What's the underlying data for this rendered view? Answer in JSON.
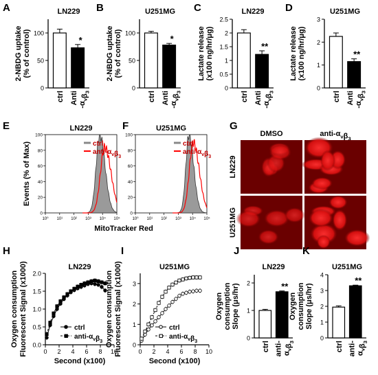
{
  "chart_data": [
    {
      "panel": "A",
      "type": "bar",
      "title": "LN229",
      "ylabel": [
        "2-NBDG uptake",
        "(% of control)"
      ],
      "ylim": [
        0,
        125
      ],
      "yticks": [
        "0",
        "50",
        "100"
      ],
      "categories": [
        "ctrl",
        "Anti\n-αvβ3"
      ],
      "values": [
        100,
        73
      ],
      "errors": [
        7,
        6
      ],
      "significance": [
        null,
        "*"
      ]
    },
    {
      "panel": "B",
      "type": "bar",
      "title": "U251MG",
      "ylabel": [
        "2-NBDG uptake",
        "(% of control)"
      ],
      "ylim": [
        0,
        125
      ],
      "yticks": [
        "0",
        "50",
        "100"
      ],
      "categories": [
        "ctrl",
        "Anti\n-αvβ3"
      ],
      "values": [
        100,
        78
      ],
      "errors": [
        3,
        3
      ],
      "significance": [
        null,
        "*"
      ]
    },
    {
      "panel": "C",
      "type": "bar",
      "title": "LN229",
      "ylabel": [
        "Lactate release",
        "(x100 ng/hr/μg)"
      ],
      "ylim": [
        0,
        2.5
      ],
      "yticks": [
        "0",
        "0.5",
        "1",
        "1.5",
        "2",
        "2.5"
      ],
      "categories": [
        "ctrl",
        "Anti\n-αvβ3"
      ],
      "values": [
        2.0,
        1.22
      ],
      "errors": [
        0.12,
        0.13
      ],
      "significance": [
        null,
        "**"
      ]
    },
    {
      "panel": "D",
      "type": "bar",
      "title": "U251MG",
      "ylabel": [
        "Lactate release",
        "(x100 ng/hr/μg)"
      ],
      "ylim": [
        0,
        3
      ],
      "yticks": [
        "0",
        "1",
        "2",
        "3"
      ],
      "categories": [
        "ctrl",
        "Anti\n-αvβ3"
      ],
      "values": [
        2.25,
        1.15
      ],
      "errors": [
        0.15,
        0.12
      ],
      "significance": [
        null,
        "**"
      ]
    },
    {
      "panel": "E",
      "type": "area",
      "title": "LN229",
      "ylabel": "Events (% of Max)",
      "ylim": [
        0,
        100
      ],
      "yticks": [
        "0",
        "20",
        "40",
        "60",
        "80",
        "100"
      ],
      "xticks": [
        "10⁰",
        "10¹",
        "10²",
        "10³",
        "10⁴",
        "10⁵"
      ],
      "legend": [
        "ctrl",
        "anti-αvβ3"
      ],
      "series": [
        {
          "name": "ctrl",
          "peak_log10": 3.8,
          "width": 0.25,
          "peak": 100
        },
        {
          "name": "anti-αvβ3",
          "peak_log10": 4.15,
          "width": 0.3,
          "peak": 84
        }
      ]
    },
    {
      "panel": "F",
      "type": "area",
      "title": "U251MG",
      "ylabel": "",
      "ylim": [
        0,
        100
      ],
      "yticks": [
        "0",
        "20",
        "40",
        "60",
        "80",
        "100"
      ],
      "xticks": [
        "10⁰",
        "10¹",
        "10²",
        "10³",
        "10⁴",
        "10⁵"
      ],
      "legend": [
        "ctrl",
        "anti-αvβ3"
      ],
      "series": [
        {
          "name": "ctrl",
          "peak_log10": 3.75,
          "width": 0.22,
          "peak": 100
        },
        {
          "name": "anti-αvβ3",
          "peak_log10": 4.05,
          "width": 0.28,
          "peak": 90
        }
      ]
    },
    {
      "panel": "H",
      "type": "line",
      "title": "LN229",
      "ylabel": [
        "Oxygen consumption",
        "Fluorescent Signal (x1000)"
      ],
      "xlabel": "Second (x100)",
      "xlim": [
        0,
        10
      ],
      "ylim": [
        0,
        2
      ],
      "xticks": [
        "0",
        "2",
        "4",
        "6",
        "8",
        "10"
      ],
      "yticks": [
        "0.0",
        "0.5",
        "1.0",
        "1.5",
        "2.0"
      ],
      "legend": [
        "ctrl",
        "anti-αvβ3"
      ],
      "x": [
        0.2,
        0.7,
        1.2,
        1.7,
        2.2,
        2.7,
        3.2,
        3.7,
        4.2,
        4.7,
        5.2,
        5.7,
        6.2,
        6.7,
        7.2,
        7.7,
        8.2,
        8.7
      ],
      "series": [
        {
          "name": "ctrl",
          "values": [
            0.2,
            0.55,
            0.8,
            1.0,
            1.15,
            1.28,
            1.38,
            1.47,
            1.53,
            1.58,
            1.62,
            1.66,
            1.7,
            1.72,
            1.7,
            1.68,
            1.62,
            1.52
          ]
        },
        {
          "name": "anti-αvβ3",
          "values": [
            0.3,
            0.62,
            0.88,
            1.08,
            1.22,
            1.33,
            1.42,
            1.5,
            1.57,
            1.63,
            1.68,
            1.72,
            1.75,
            1.78,
            1.8,
            1.78,
            1.75,
            1.72
          ]
        }
      ]
    },
    {
      "panel": "I",
      "type": "line",
      "title": "U251MG",
      "ylabel": [
        "Oxygen consumption",
        "Fluorescent Signal (x1000)"
      ],
      "xlabel": "Second (x100)",
      "xlim": [
        0,
        10
      ],
      "ylim": [
        0,
        3.5
      ],
      "xticks": [
        "0",
        "2",
        "4",
        "6",
        "8",
        "10"
      ],
      "yticks": [
        "0",
        "1",
        "2",
        "3"
      ],
      "legend": [
        "ctrl",
        "anti-αvβ3"
      ],
      "x": [
        0.2,
        0.7,
        1.2,
        1.7,
        2.2,
        2.7,
        3.2,
        3.7,
        4.2,
        4.7,
        5.2,
        5.7,
        6.2,
        6.7,
        7.2,
        7.7,
        8.2,
        8.7
      ],
      "series": [
        {
          "name": "ctrl",
          "values": [
            0.2,
            0.5,
            0.75,
            0.95,
            1.15,
            1.35,
            1.55,
            1.75,
            1.92,
            2.1,
            2.25,
            2.4,
            2.5,
            2.55,
            2.6,
            2.62,
            2.65,
            2.65
          ]
        },
        {
          "name": "anti-αvβ3",
          "values": [
            0.3,
            0.65,
            1.0,
            1.35,
            1.7,
            2.05,
            2.35,
            2.6,
            2.8,
            2.95,
            3.05,
            3.15,
            3.2,
            3.25,
            3.28,
            3.3,
            3.3,
            3.3
          ]
        }
      ]
    },
    {
      "panel": "J",
      "type": "bar",
      "title": "LN229",
      "ylabel": [
        "Oxygen",
        "consumption",
        "Slope (μs/hr)"
      ],
      "ylim": [
        0,
        2.3
      ],
      "yticks": [
        "0",
        "1",
        "2"
      ],
      "categories": [
        "ctrl",
        "anti-\nαvβ3"
      ],
      "values": [
        1.0,
        1.68
      ],
      "errors": [
        0.04,
        0.03
      ],
      "significance": [
        null,
        "**"
      ]
    },
    {
      "panel": "K",
      "type": "bar",
      "title": "U251MG",
      "ylabel": [
        "Oxygen",
        "consumption",
        "Slope (μs/hr)"
      ],
      "ylim": [
        0,
        4
      ],
      "yticks": [
        "0",
        "1",
        "2",
        "3",
        "4"
      ],
      "categories": [
        "ctrl",
        "anti-\nαvβ3"
      ],
      "values": [
        1.95,
        3.3
      ],
      "errors": [
        0.08,
        0.04
      ],
      "significance": [
        null,
        "**"
      ]
    }
  ],
  "micrograph": {
    "panel": "G",
    "columns": [
      "DMSO",
      "anti-αvβ3"
    ],
    "rows": [
      "LN229",
      "U251MG"
    ],
    "colors": {
      "background": "#6a0000",
      "cell": "#d81010",
      "bright": "#ff3030"
    }
  },
  "e_f_shared_xlabel": "MitoTracker Red",
  "colors": {
    "ctrl_fill": "#ffffff",
    "treated_fill": "#000000",
    "ctrl_hist": "#9a9a9a",
    "treated_hist": "#ff0000"
  }
}
